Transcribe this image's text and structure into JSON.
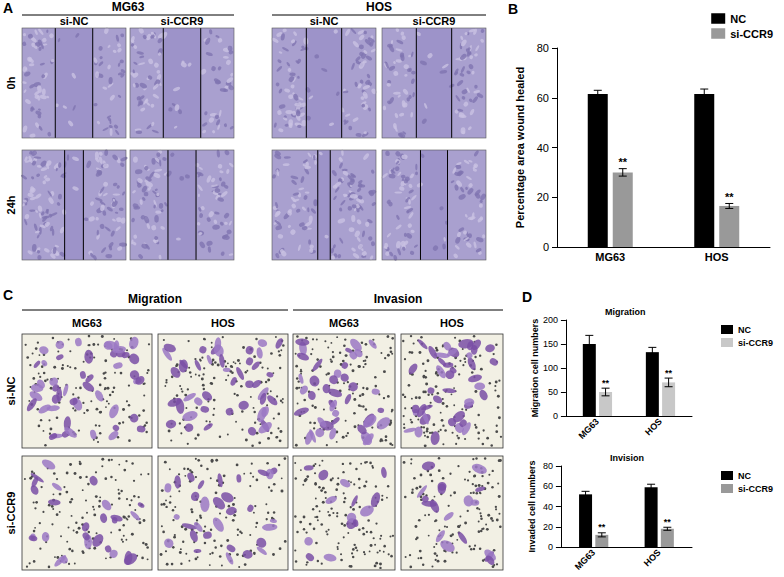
{
  "panels": {
    "A": {
      "letter": "A",
      "groups": [
        {
          "title": "MG63",
          "columns": [
            "si-NC",
            "si-CCR9"
          ]
        },
        {
          "title": "HOS",
          "columns": [
            "si-NC",
            "si-CCR9"
          ]
        }
      ],
      "rows": [
        "0h",
        "24h"
      ]
    },
    "C": {
      "letter": "C",
      "groups": [
        {
          "title": "Migration",
          "columns": [
            "MG63",
            "HOS"
          ]
        },
        {
          "title": "Invasion",
          "columns": [
            "MG63",
            "HOS"
          ]
        }
      ],
      "rows": [
        "si-NC",
        "si-CCR9"
      ]
    },
    "D": {
      "letter": "D"
    }
  },
  "chart_data": [
    {
      "panel": "B",
      "type": "bar",
      "ylabel": "Percentage area wound healed",
      "categories": [
        "MG63",
        "HOS"
      ],
      "series": [
        {
          "name": "NC",
          "color": "#000000",
          "values": [
            61.5,
            61.5
          ],
          "errors": [
            1.5,
            2
          ]
        },
        {
          "name": "si-CCR9",
          "color": "#999999",
          "values": [
            30,
            16.5
          ],
          "errors": [
            1.5,
            1
          ],
          "annotations": [
            "**",
            "**"
          ]
        }
      ],
      "ylim": [
        0,
        80
      ],
      "yticks": [
        0,
        20,
        40,
        60,
        80
      ],
      "grid": false,
      "legend": "upper right"
    },
    {
      "type": "bar",
      "title": "Migration",
      "ylabel": "Migration cell numbers",
      "categories": [
        "MG63",
        "HOS"
      ],
      "series": [
        {
          "name": "NC",
          "color": "#000000",
          "values": [
            150,
            133
          ],
          "errors": [
            18,
            10
          ]
        },
        {
          "name": "si-CCR9",
          "color": "#c8c8c8",
          "values": [
            50,
            70
          ],
          "errors": [
            8,
            9
          ],
          "annotations": [
            "**",
            "**"
          ]
        }
      ],
      "ylim": [
        0,
        200
      ],
      "yticks": [
        0,
        50,
        100,
        150,
        200
      ],
      "grid": false,
      "legend": "upper right"
    },
    {
      "type": "bar",
      "title": "Invision",
      "ylabel": "Invaded cell numbers",
      "categories": [
        "MG63",
        "HOS"
      ],
      "series": [
        {
          "name": "NC",
          "color": "#000000",
          "values": [
            52,
            59
          ],
          "errors": [
            3,
            3
          ]
        },
        {
          "name": "si-CCR9",
          "color": "#999999",
          "values": [
            12,
            18
          ],
          "errors": [
            2,
            1.5
          ],
          "annotations": [
            "**",
            "**"
          ]
        }
      ],
      "ylim": [
        0,
        80
      ],
      "yticks": [
        0,
        20,
        40,
        60,
        80
      ],
      "grid": false,
      "legend": "upper right"
    }
  ]
}
